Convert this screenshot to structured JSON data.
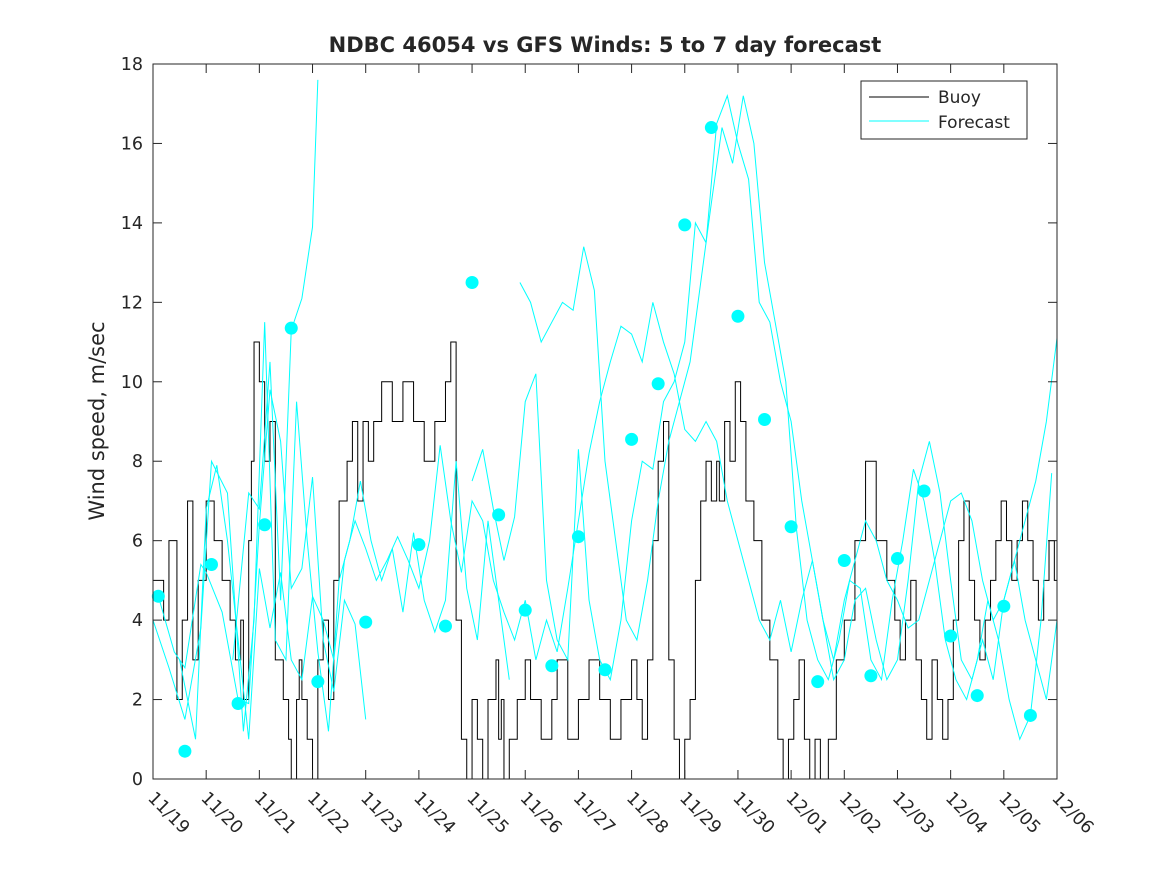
{
  "chart_data": {
    "type": "line",
    "title": "NDBC 46054 vs GFS Winds: 5 to 7 day forecast",
    "xlabel": "",
    "ylabel": "Wind speed, m/sec",
    "xlim": [
      0,
      17
    ],
    "ylim": [
      0,
      18
    ],
    "yticks": [
      0,
      2,
      4,
      6,
      8,
      10,
      12,
      14,
      16,
      18
    ],
    "xtick_labels": [
      "11/19",
      "11/20",
      "11/21",
      "11/22",
      "11/23",
      "11/24",
      "11/25",
      "11/26",
      "11/27",
      "11/28",
      "11/29",
      "11/30",
      "12/01",
      "12/02",
      "12/03",
      "12/04",
      "12/05",
      "12/06"
    ],
    "legend": {
      "position": "top-right",
      "entries": [
        "Buoy",
        "Forecast"
      ]
    },
    "colors": {
      "buoy": "#000000",
      "forecast": "#00ffff",
      "axes": "#262626"
    },
    "series": [
      {
        "name": "Buoy",
        "style": "step",
        "x": [
          0.0,
          0.2,
          0.3,
          0.45,
          0.55,
          0.65,
          0.75,
          0.85,
          1.0,
          1.15,
          1.3,
          1.45,
          1.55,
          1.65,
          1.7,
          1.8,
          1.85,
          1.9,
          2.0,
          2.1,
          2.2,
          2.3,
          2.45,
          2.55,
          2.6,
          2.7,
          2.75,
          2.8,
          2.9,
          3.0,
          3.1,
          3.2,
          3.3,
          3.4,
          3.5,
          3.65,
          3.75,
          3.85,
          3.95,
          4.05,
          4.15,
          4.3,
          4.5,
          4.7,
          4.9,
          5.1,
          5.3,
          5.5,
          5.6,
          5.7,
          5.8,
          5.9,
          6.0,
          6.1,
          6.2,
          6.3,
          6.45,
          6.5,
          6.55,
          6.6,
          6.7,
          6.85,
          7.0,
          7.1,
          7.3,
          7.5,
          7.6,
          7.8,
          8.0,
          8.2,
          8.4,
          8.6,
          8.8,
          9.0,
          9.1,
          9.2,
          9.3,
          9.4,
          9.5,
          9.6,
          9.7,
          9.8,
          9.9,
          10.0,
          10.1,
          10.2,
          10.3,
          10.4,
          10.5,
          10.6,
          10.65,
          10.75,
          10.85,
          10.95,
          11.05,
          11.15,
          11.3,
          11.45,
          11.6,
          11.75,
          11.85,
          11.95,
          12.05,
          12.15,
          12.25,
          12.35,
          12.45,
          12.55,
          12.7,
          12.85,
          13.0,
          13.2,
          13.4,
          13.6,
          13.8,
          13.95,
          14.05,
          14.15,
          14.25,
          14.35,
          14.45,
          14.55,
          14.65,
          14.75,
          14.85,
          14.95,
          15.05,
          15.15,
          15.25,
          15.35,
          15.45,
          15.55,
          15.65,
          15.75,
          15.85,
          15.95,
          16.05,
          16.15,
          16.25,
          16.35,
          16.45,
          16.55,
          16.65,
          16.75,
          16.85,
          16.95
        ],
        "y": [
          5,
          4,
          6,
          2,
          4,
          7,
          3,
          5,
          7,
          6,
          5,
          4,
          3,
          4,
          2,
          6,
          8,
          11,
          10,
          8,
          9,
          3,
          2,
          1,
          0,
          2,
          3,
          2,
          1,
          0,
          3,
          4,
          2,
          5,
          7,
          8,
          9,
          7,
          9,
          8,
          9,
          10,
          9,
          10,
          9,
          8,
          9,
          10,
          11,
          4,
          1,
          0,
          2,
          1,
          0,
          2,
          3,
          1,
          2,
          0,
          1,
          2,
          3,
          2,
          1,
          2,
          3,
          1,
          2,
          3,
          2,
          1,
          2,
          3,
          2,
          1,
          3,
          6,
          8,
          9,
          3,
          1,
          0,
          1,
          2,
          5,
          7,
          8,
          7,
          8,
          7,
          9,
          8,
          10,
          9,
          7,
          6,
          4,
          3,
          1,
          0,
          1,
          2,
          3,
          1,
          0,
          1,
          0,
          1,
          3,
          4,
          6,
          8,
          6,
          5,
          4,
          3,
          4,
          5,
          3,
          2,
          1,
          3,
          2,
          1,
          2,
          4,
          6,
          7,
          5,
          4,
          3,
          4,
          5,
          6,
          7,
          6,
          5,
          6,
          7,
          6,
          5,
          4,
          5,
          6,
          5
        ]
      },
      {
        "name": "Forecast",
        "style": "line",
        "x": [
          0.1,
          0.4,
          0.6,
          0.9,
          1.0,
          1.3,
          1.6,
          1.8,
          2.0,
          2.2,
          2.4,
          2.6,
          2.8,
          3.0,
          3.2,
          3.4,
          3.6,
          3.8,
          4.0
        ],
        "y": [
          4.6,
          3.2,
          2.8,
          5.4,
          5.2,
          4.2,
          2.0,
          1.9,
          6.4,
          9.8,
          8.5,
          4.8,
          5.3,
          7.6,
          3.5,
          2.2,
          4.5,
          3.9,
          1.5
        ]
      },
      {
        "name": "Forecast",
        "style": "line",
        "x": [
          0.0,
          0.3,
          0.6,
          0.9,
          1.1,
          1.4,
          1.7,
          1.9,
          2.1,
          2.3,
          2.5,
          2.7,
          2.9,
          3.1,
          3.3,
          3.5,
          3.7,
          3.9,
          4.1,
          4.3,
          4.5,
          4.7,
          4.9,
          5.1,
          5.3,
          5.5,
          5.7,
          5.9,
          6.1,
          6.3,
          6.5,
          6.7
        ],
        "y": [
          4.0,
          2.8,
          1.5,
          3.8,
          8.0,
          7.2,
          1.2,
          4.0,
          11.5,
          3.5,
          3.0,
          9.5,
          6.0,
          3.2,
          1.2,
          5.0,
          6.0,
          7.5,
          6.0,
          5.0,
          5.8,
          4.2,
          6.2,
          4.5,
          3.7,
          4.5,
          8.0,
          4.8,
          3.5,
          6.5,
          4.5,
          2.5
        ]
      },
      {
        "name": "Forecast",
        "style": "line",
        "x": [
          1.5,
          1.8,
          2.0,
          2.2,
          2.4,
          2.6,
          2.8,
          3.0,
          3.1
        ],
        "y": [
          3.0,
          7.2,
          6.8,
          10.5,
          4.5,
          11.3,
          12.1,
          13.9,
          17.6
        ]
      },
      {
        "name": "Forecast",
        "style": "line",
        "x": [
          0.5,
          0.8,
          1.0,
          1.2,
          1.4,
          1.6,
          1.8,
          2.0,
          2.2,
          2.4,
          2.6,
          2.8,
          3.0,
          3.2,
          3.4,
          3.6,
          3.8,
          4.0,
          4.2,
          4.4,
          4.6,
          4.8,
          5.0,
          5.2,
          5.4,
          5.6,
          5.8,
          6.0,
          6.2,
          6.4,
          6.6,
          6.8,
          7.0,
          7.2,
          7.4,
          7.6,
          7.8,
          8.0,
          8.2,
          8.4,
          8.6,
          8.8,
          9.0,
          9.2,
          9.4,
          9.6,
          9.8,
          10.0,
          10.2,
          10.4,
          10.6,
          10.8,
          11.0,
          11.2,
          11.4,
          11.6,
          11.8,
          12.0,
          12.2,
          12.4,
          12.6,
          12.8,
          13.0,
          13.2,
          13.4,
          13.6,
          13.8,
          14.0,
          14.2,
          14.4,
          14.6,
          14.8,
          15.0,
          15.2,
          15.4,
          15.6,
          15.8,
          16.0,
          16.2,
          16.4,
          16.6,
          16.8,
          17.0
        ],
        "y": [
          3.0,
          1.0,
          6.8,
          7.9,
          6.0,
          3.5,
          1.0,
          5.3,
          3.8,
          5.2,
          3.0,
          2.5,
          4.6,
          4.0,
          3.0,
          5.5,
          6.5,
          5.8,
          5.0,
          5.5,
          6.1,
          5.5,
          4.8,
          6.0,
          8.4,
          6.5,
          5.2,
          7.0,
          6.5,
          5.0,
          4.2,
          3.5,
          4.5,
          3.0,
          4.0,
          3.2,
          4.8,
          6.5,
          8.2,
          9.5,
          10.5,
          11.4,
          11.2,
          10.5,
          12.0,
          11.0,
          10.2,
          8.8,
          8.5,
          9.0,
          8.5,
          7.0,
          6.0,
          5.0,
          4.0,
          3.5,
          4.5,
          3.2,
          4.5,
          5.5,
          4.0,
          3.0,
          4.5,
          5.5,
          6.5,
          6.0,
          5.0,
          4.5,
          3.8,
          4.0,
          5.0,
          6.0,
          7.0,
          7.2,
          6.5,
          5.0,
          4.0,
          4.5,
          5.5,
          6.5,
          7.5,
          9.0,
          11.1
        ]
      },
      {
        "name": "Forecast",
        "style": "line",
        "x": [
          6.0,
          6.2,
          6.4,
          6.6,
          6.8,
          7.0,
          7.2,
          7.4,
          7.6,
          7.8,
          8.0,
          8.2,
          8.4,
          8.6,
          8.8,
          9.0,
          9.2,
          9.4,
          9.6,
          9.8,
          10.0,
          10.2,
          10.4,
          10.6,
          10.8,
          11.0,
          11.2,
          11.4,
          11.6,
          11.8,
          12.0,
          12.2,
          12.4,
          12.6,
          12.8,
          13.0,
          13.2,
          13.4,
          13.6,
          13.8,
          14.0,
          14.2,
          14.4,
          14.6,
          14.8,
          15.0,
          15.2,
          15.4,
          15.6,
          15.8,
          16.0,
          16.2,
          16.4,
          16.6,
          16.8,
          17.0
        ],
        "y": [
          7.5,
          8.3,
          6.8,
          5.5,
          6.6,
          9.5,
          10.2,
          5.0,
          3.5,
          3.0,
          8.3,
          4.5,
          3.0,
          2.5,
          4.0,
          6.5,
          8.0,
          7.8,
          9.5,
          10.0,
          11.0,
          14.0,
          13.5,
          16.5,
          17.2,
          16.0,
          15.1,
          12.0,
          11.5,
          10.0,
          9.0,
          7.0,
          5.5,
          4.0,
          2.5,
          3.0,
          4.5,
          4.8,
          3.5,
          2.5,
          3.0,
          5.0,
          7.5,
          8.5,
          7.2,
          5.0,
          3.0,
          2.5,
          3.5,
          2.5,
          4.5,
          5.5,
          4.0,
          3.0,
          2.0,
          4.0
        ]
      },
      {
        "name": "Forecast",
        "style": "line",
        "x": [
          6.9,
          7.1,
          7.3,
          7.5,
          7.7,
          7.9,
          8.1,
          8.3,
          8.5,
          8.7,
          8.9,
          9.1,
          9.3,
          9.5,
          9.7,
          9.9,
          10.1,
          10.3,
          10.5,
          10.7,
          10.9,
          11.1,
          11.3,
          11.5,
          11.7,
          11.9,
          12.1,
          12.3,
          12.5,
          12.7,
          12.9,
          13.1,
          13.3,
          13.5,
          13.7,
          13.9,
          14.1,
          14.3,
          14.5,
          14.7,
          14.9,
          15.1,
          15.3,
          15.5,
          15.7,
          15.9,
          16.1,
          16.3,
          16.5,
          16.7,
          16.9
        ],
        "y": [
          12.5,
          12.0,
          11.0,
          11.5,
          12.0,
          11.8,
          13.4,
          12.3,
          8.0,
          6.0,
          4.0,
          3.5,
          5.0,
          7.0,
          8.5,
          9.5,
          10.5,
          12.5,
          14.5,
          16.4,
          15.5,
          17.2,
          16.0,
          13.0,
          11.5,
          10.0,
          6.3,
          4.0,
          3.0,
          2.5,
          3.5,
          5.0,
          4.8,
          3.0,
          2.5,
          4.5,
          6.0,
          7.8,
          7.0,
          5.5,
          3.5,
          2.5,
          2.0,
          3.0,
          4.5,
          3.5,
          2.0,
          1.0,
          1.6,
          4.0,
          7.7
        ]
      }
    ],
    "markers": {
      "series": "Forecast",
      "x": [
        0.1,
        0.6,
        1.1,
        1.6,
        2.1,
        2.6,
        3.1,
        4.0,
        5.0,
        5.5,
        6.0,
        6.5,
        7.0,
        7.5,
        8.0,
        8.5,
        9.0,
        9.5,
        10.0,
        10.5,
        11.0,
        11.5,
        12.0,
        12.5,
        13.0,
        13.5,
        14.0,
        14.5,
        15.0,
        15.5,
        16.0,
        16.5
      ],
      "y": [
        4.6,
        0.7,
        5.4,
        1.9,
        6.4,
        11.35,
        2.45,
        3.95,
        5.9,
        3.85,
        12.5,
        6.65,
        4.25,
        2.85,
        6.1,
        2.75,
        8.55,
        9.95,
        13.95,
        16.4,
        11.65,
        9.05,
        6.35,
        2.45,
        5.5,
        2.6,
        5.55,
        7.25,
        3.6,
        2.1,
        4.35,
        1.6
      ]
    }
  }
}
